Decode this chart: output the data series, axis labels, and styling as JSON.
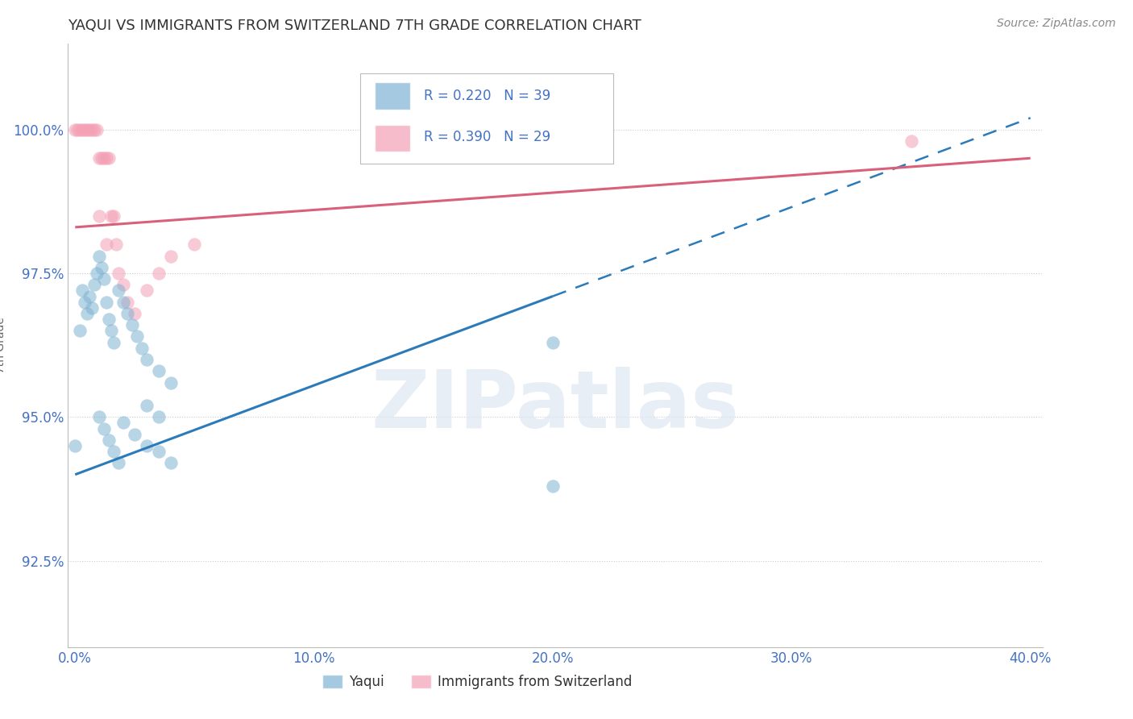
{
  "title": "YAQUI VS IMMIGRANTS FROM SWITZERLAND 7TH GRADE CORRELATION CHART",
  "source": "Source: ZipAtlas.com",
  "ylabel": "7th Grade",
  "watermark": "ZIPatlas",
  "legend_blue_label": "Yaqui",
  "legend_pink_label": "Immigrants from Switzerland",
  "R_blue": 0.22,
  "N_blue": 39,
  "R_pink": 0.39,
  "N_pink": 29,
  "blue_color": "#7fb3d3",
  "pink_color": "#f4a0b5",
  "blue_line_color": "#2b7bba",
  "pink_line_color": "#d9607a",
  "xlim": [
    0,
    40
  ],
  "ylim": [
    91.0,
    101.2
  ],
  "yticks": [
    92.5,
    95.0,
    97.5,
    100.0
  ],
  "xticks": [
    0.0,
    10.0,
    20.0,
    30.0,
    40.0
  ],
  "blue_x": [
    0.0,
    0.2,
    0.3,
    0.4,
    0.5,
    0.6,
    0.7,
    0.8,
    0.9,
    1.0,
    1.1,
    1.2,
    1.3,
    1.4,
    1.5,
    1.6,
    1.8,
    2.0,
    2.2,
    2.4,
    2.6,
    2.8,
    3.0,
    3.5,
    4.0,
    1.0,
    1.2,
    1.4,
    1.6,
    1.8,
    20.0,
    3.0,
    3.5,
    2.0,
    2.5,
    3.0,
    3.5,
    4.0,
    20.0
  ],
  "blue_y": [
    94.5,
    96.5,
    97.2,
    97.0,
    96.8,
    97.1,
    96.9,
    97.3,
    97.5,
    97.8,
    97.6,
    97.4,
    97.0,
    96.7,
    96.5,
    96.3,
    97.2,
    97.0,
    96.8,
    96.6,
    96.4,
    96.2,
    96.0,
    95.8,
    95.6,
    95.0,
    94.8,
    94.6,
    94.4,
    94.2,
    96.3,
    95.2,
    95.0,
    94.9,
    94.7,
    94.5,
    94.4,
    94.2,
    93.8
  ],
  "pink_x": [
    0.0,
    0.1,
    0.2,
    0.3,
    0.4,
    0.5,
    0.6,
    0.7,
    0.8,
    0.9,
    1.0,
    1.1,
    1.2,
    1.3,
    1.4,
    1.5,
    1.6,
    1.7,
    1.8,
    2.0,
    2.2,
    2.5,
    3.0,
    3.5,
    4.0,
    5.0,
    1.0,
    1.3,
    35.0
  ],
  "pink_y": [
    100.0,
    100.0,
    100.0,
    100.0,
    100.0,
    100.0,
    100.0,
    100.0,
    100.0,
    100.0,
    99.5,
    99.5,
    99.5,
    99.5,
    99.5,
    98.5,
    98.5,
    98.0,
    97.5,
    97.3,
    97.0,
    96.8,
    97.2,
    97.5,
    97.8,
    98.0,
    98.5,
    98.0,
    99.8
  ],
  "blue_trend_x0": 0.0,
  "blue_trend_y0": 94.0,
  "blue_trend_x1": 40.0,
  "blue_trend_y1": 100.2,
  "blue_solid_end_x": 20.0,
  "pink_trend_x0": 0.0,
  "pink_trend_y0": 98.3,
  "pink_trend_x1": 40.0,
  "pink_trend_y1": 99.5,
  "grid_color": "#cccccc",
  "background_color": "#ffffff",
  "title_fontsize": 13,
  "tick_label_color": "#4472c4"
}
